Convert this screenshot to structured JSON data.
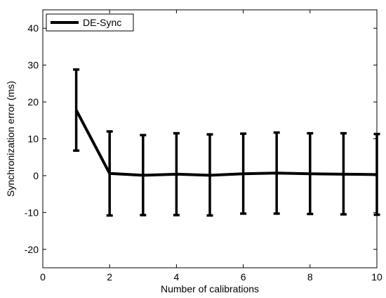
{
  "chart_data": {
    "type": "line",
    "xlabel": "Number of calibrations",
    "ylabel": "Synchronization error (ms)",
    "xlim": [
      0,
      10
    ],
    "ylim": [
      -25,
      45
    ],
    "xticks": [
      0,
      2,
      4,
      6,
      8,
      10
    ],
    "yticks": [
      -20,
      -10,
      0,
      10,
      20,
      30,
      40
    ],
    "grid": false,
    "legend_position": "top-left",
    "series": [
      {
        "name": "DE-Sync",
        "color": "#000000",
        "x": [
          1,
          2,
          3,
          4,
          5,
          6,
          7,
          8,
          9,
          10
        ],
        "y": [
          17.8,
          0.6,
          0.1,
          0.4,
          0.1,
          0.5,
          0.7,
          0.5,
          0.4,
          0.3
        ],
        "err_upper": [
          28.8,
          12.0,
          11.0,
          11.5,
          11.2,
          11.4,
          11.7,
          11.5,
          11.5,
          11.3
        ],
        "err_lower": [
          6.8,
          -10.8,
          -10.7,
          -10.7,
          -10.8,
          -10.3,
          -10.3,
          -10.4,
          -10.5,
          -10.6
        ]
      }
    ]
  }
}
